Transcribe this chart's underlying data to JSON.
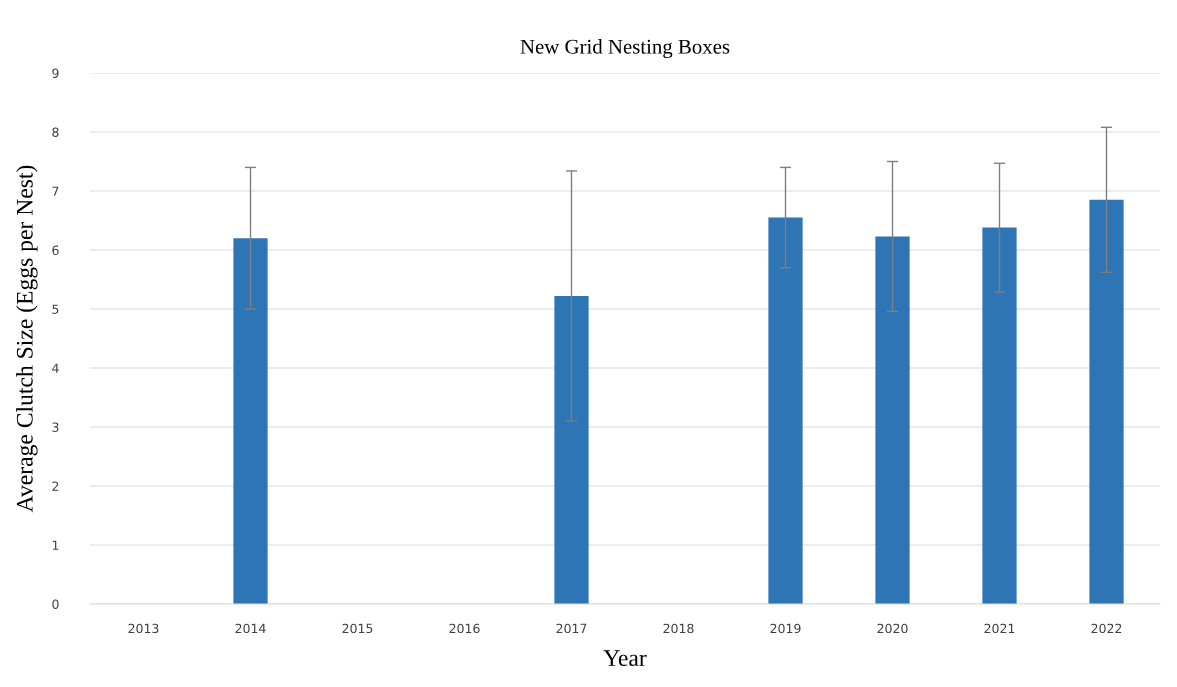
{
  "chart_data": {
    "type": "bar",
    "title": "New Grid Nesting Boxes",
    "xlabel": "Year",
    "ylabel": "Average Clutch Size (Eggs per Nest)",
    "categories": [
      "2013",
      "2014",
      "2015",
      "2016",
      "2017",
      "2018",
      "2019",
      "2020",
      "2021",
      "2022"
    ],
    "values": [
      null,
      6.2,
      null,
      null,
      5.22,
      null,
      6.55,
      6.23,
      6.38,
      6.85
    ],
    "errors": [
      null,
      1.2,
      null,
      null,
      2.12,
      null,
      0.85,
      1.27,
      1.09,
      1.23
    ],
    "color": "#2e75b6",
    "ylim": [
      0,
      9
    ],
    "yticks": [
      0,
      1,
      2,
      3,
      4,
      5,
      6,
      7,
      8,
      9
    ],
    "grid": "y"
  }
}
